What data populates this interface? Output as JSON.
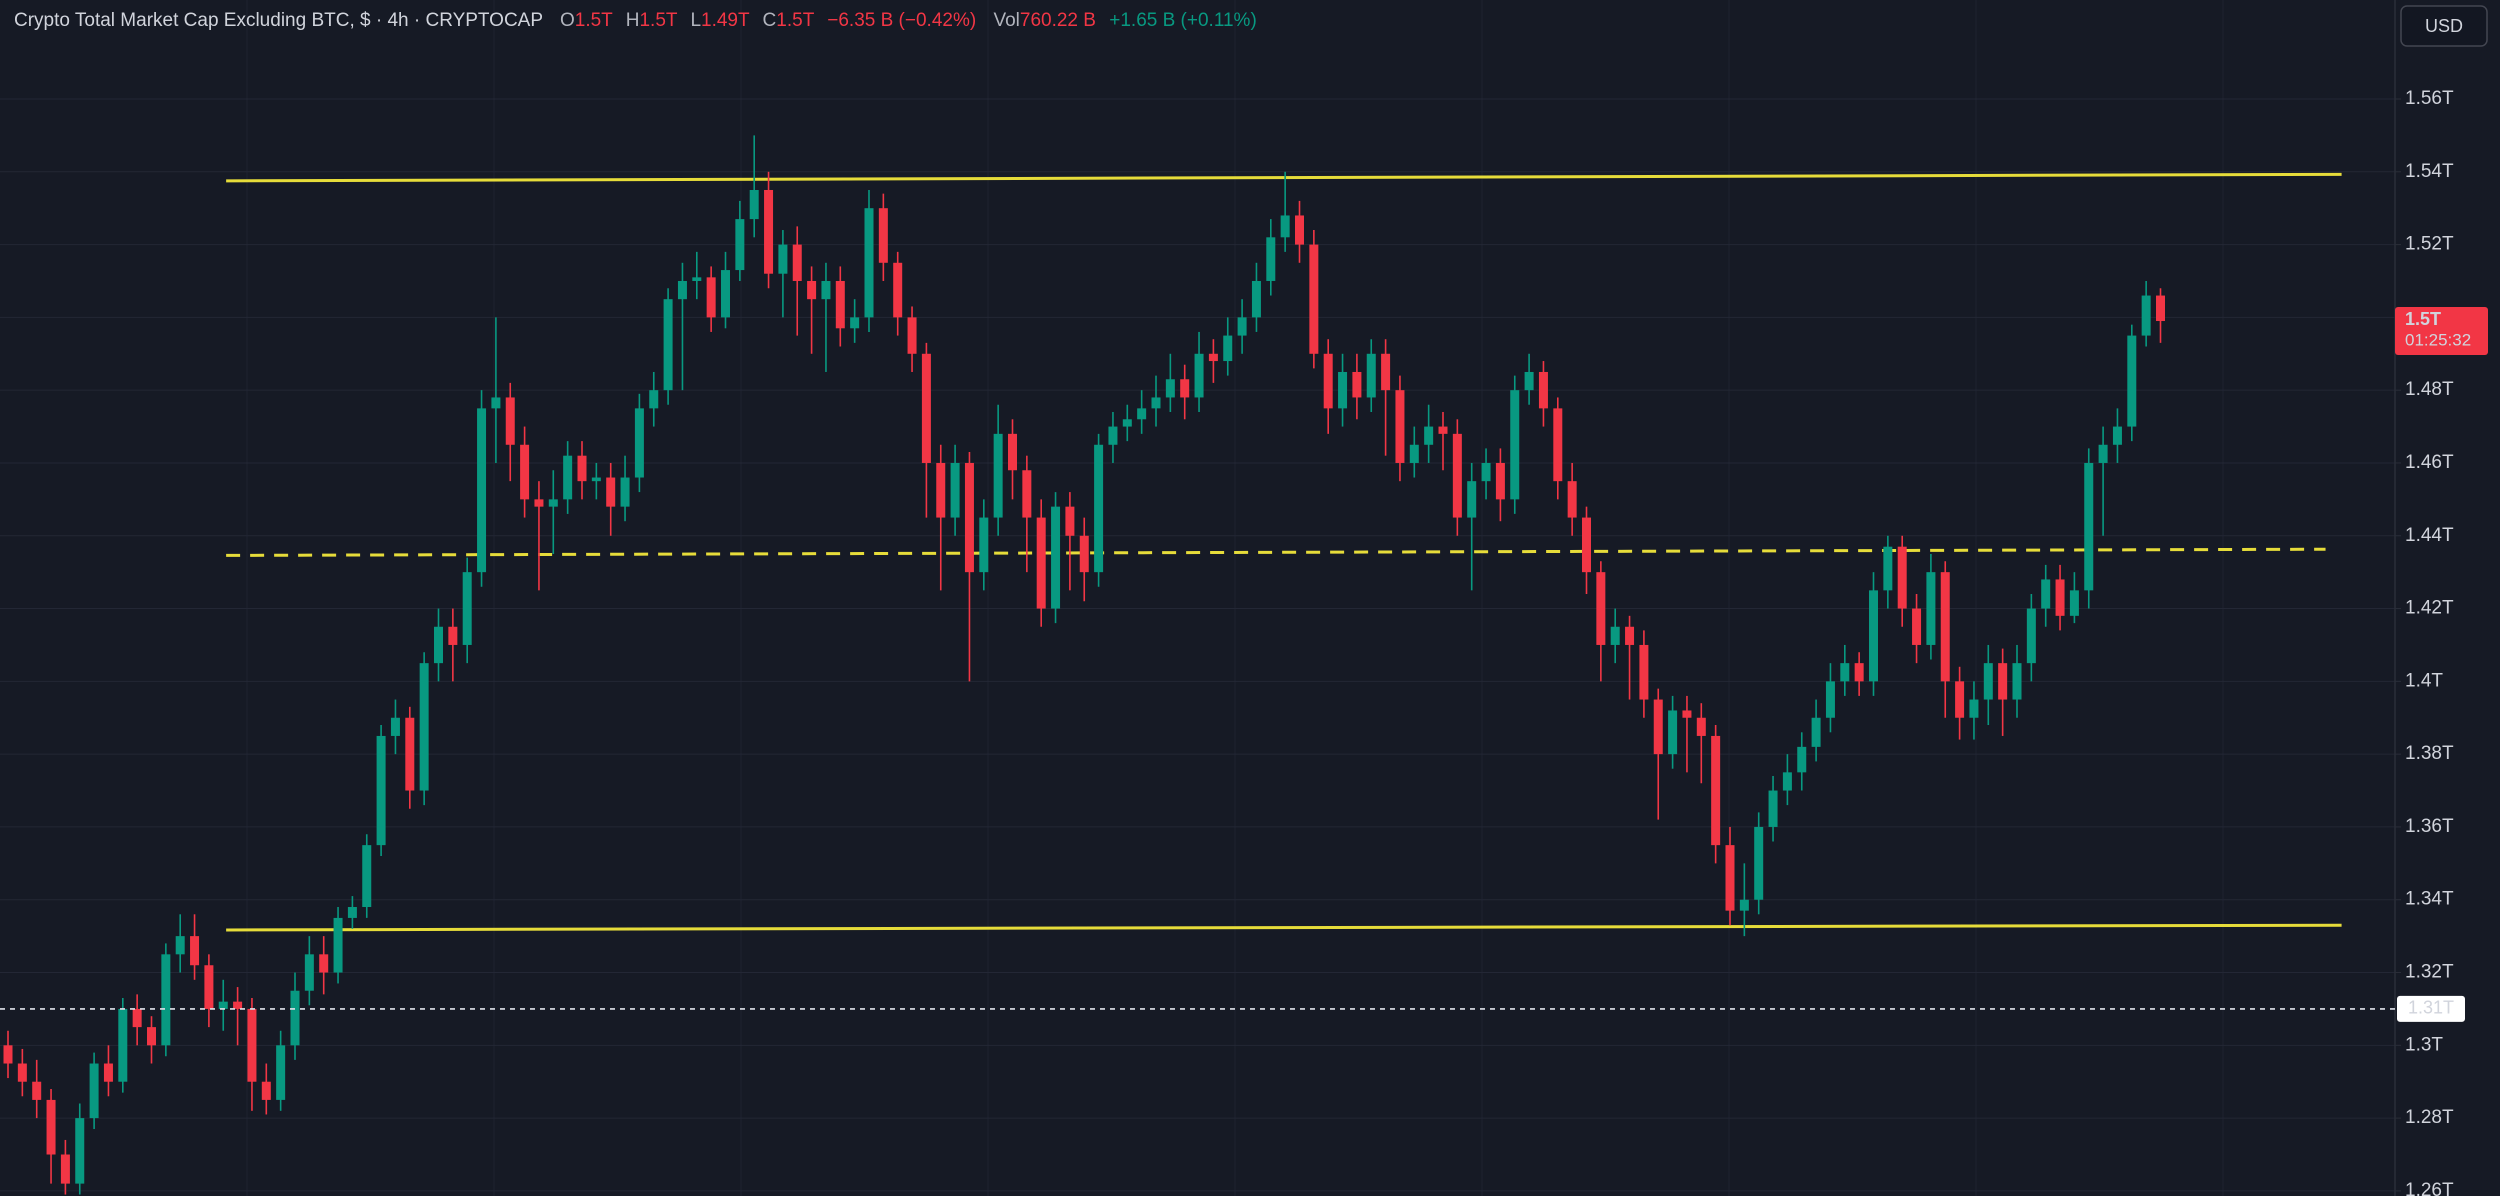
{
  "chart_data": {
    "type": "candlestick",
    "title": "Crypto Total Market Cap Excluding BTC, $ · 4h · CRYPTOCAP",
    "ohlc": [
      {
        "key": "O",
        "value": "1.5T"
      },
      {
        "key": "H",
        "value": "1.5T"
      },
      {
        "key": "L",
        "value": "1.49T"
      },
      {
        "key": "C",
        "value": "1.5T"
      }
    ],
    "change": "−6.35 B (−0.42%)",
    "volume_key": "Vol",
    "volume": "760.22 B",
    "volume_change": "+1.65 B (+0.11%)",
    "currency": "USD",
    "up_color": "#089981",
    "down_color": "#f23645",
    "grid": true,
    "ylim": [
      1.2586,
      1.5872
    ],
    "yticks": [
      {
        "value": 1.26,
        "label": "1.26T"
      },
      {
        "value": 1.28,
        "label": "1.28T"
      },
      {
        "value": 1.3,
        "label": "1.3T"
      },
      {
        "value": 1.32,
        "label": "1.32T"
      },
      {
        "value": 1.34,
        "label": "1.34T"
      },
      {
        "value": 1.36,
        "label": "1.36T"
      },
      {
        "value": 1.38,
        "label": "1.38T"
      },
      {
        "value": 1.4,
        "label": "1.4T"
      },
      {
        "value": 1.42,
        "label": "1.42T"
      },
      {
        "value": 1.44,
        "label": "1.44T"
      },
      {
        "value": 1.46,
        "label": "1.46T"
      },
      {
        "value": 1.48,
        "label": "1.48T"
      },
      {
        "value": 1.5,
        "label": "1.5T"
      },
      {
        "value": 1.52,
        "label": "1.52T"
      },
      {
        "value": 1.54,
        "label": "1.54T"
      },
      {
        "value": 1.56,
        "label": "1.56T"
      }
    ],
    "open": [
      1.3,
      1.295,
      1.29,
      1.285,
      1.27,
      1.262,
      1.28,
      1.295,
      1.29,
      1.31,
      1.305,
      1.3,
      1.325,
      1.33,
      1.322,
      1.31,
      1.312,
      1.31,
      1.29,
      1.285,
      1.3,
      1.315,
      1.325,
      1.32,
      1.335,
      1.338,
      1.355,
      1.385,
      1.39,
      1.37,
      1.405,
      1.415,
      1.41,
      1.43,
      1.475,
      1.478,
      1.465,
      1.45,
      1.448,
      1.45,
      1.462,
      1.455,
      1.456,
      1.448,
      1.456,
      1.475,
      1.48,
      1.505,
      1.51,
      1.511,
      1.5,
      1.513,
      1.527,
      1.535,
      1.512,
      1.52,
      1.51,
      1.505,
      1.51,
      1.497,
      1.5,
      1.53,
      1.515,
      1.5,
      1.49,
      1.46,
      1.445,
      1.46,
      1.43,
      1.445,
      1.468,
      1.458,
      1.445,
      1.42,
      1.448,
      1.44,
      1.43,
      1.465,
      1.47,
      1.472,
      1.475,
      1.478,
      1.483,
      1.478,
      1.49,
      1.488,
      1.495,
      1.5,
      1.51,
      1.522,
      1.528,
      1.52,
      1.49,
      1.475,
      1.485,
      1.478,
      1.49,
      1.48,
      1.46,
      1.465,
      1.47,
      1.468,
      1.445,
      1.455,
      1.46,
      1.45,
      1.48,
      1.485,
      1.475,
      1.455,
      1.445,
      1.43,
      1.41,
      1.415,
      1.41,
      1.395,
      1.38,
      1.392,
      1.39,
      1.385,
      1.355,
      1.337,
      1.34,
      1.36,
      1.37,
      1.375,
      1.382,
      1.39,
      1.4,
      1.405,
      1.4,
      1.425,
      1.437,
      1.42,
      1.41,
      1.43,
      1.4,
      1.39,
      1.395,
      1.405,
      1.395,
      1.405,
      1.42,
      1.428,
      1.418,
      1.425,
      1.46,
      1.465,
      1.47,
      1.495,
      1.506
    ],
    "high": [
      1.304,
      1.299,
      1.296,
      1.288,
      1.274,
      1.284,
      1.298,
      1.3,
      1.313,
      1.314,
      1.308,
      1.328,
      1.336,
      1.336,
      1.325,
      1.318,
      1.316,
      1.313,
      1.295,
      1.304,
      1.32,
      1.33,
      1.33,
      1.338,
      1.341,
      1.358,
      1.388,
      1.395,
      1.393,
      1.408,
      1.42,
      1.42,
      1.434,
      1.48,
      1.5,
      1.482,
      1.47,
      1.455,
      1.458,
      1.466,
      1.466,
      1.46,
      1.46,
      1.462,
      1.479,
      1.485,
      1.508,
      1.515,
      1.518,
      1.514,
      1.518,
      1.532,
      1.55,
      1.54,
      1.524,
      1.525,
      1.514,
      1.515,
      1.514,
      1.505,
      1.535,
      1.534,
      1.518,
      1.503,
      1.493,
      1.465,
      1.465,
      1.463,
      1.45,
      1.476,
      1.472,
      1.462,
      1.45,
      1.452,
      1.452,
      1.445,
      1.468,
      1.474,
      1.476,
      1.48,
      1.484,
      1.49,
      1.487,
      1.496,
      1.494,
      1.5,
      1.505,
      1.515,
      1.527,
      1.54,
      1.532,
      1.524,
      1.494,
      1.49,
      1.49,
      1.494,
      1.494,
      1.484,
      1.47,
      1.476,
      1.474,
      1.472,
      1.46,
      1.464,
      1.464,
      1.484,
      1.49,
      1.488,
      1.478,
      1.46,
      1.448,
      1.433,
      1.42,
      1.418,
      1.414,
      1.398,
      1.396,
      1.396,
      1.394,
      1.388,
      1.36,
      1.35,
      1.364,
      1.374,
      1.38,
      1.386,
      1.395,
      1.405,
      1.41,
      1.408,
      1.43,
      1.44,
      1.44,
      1.424,
      1.435,
      1.433,
      1.404,
      1.4,
      1.41,
      1.409,
      1.41,
      1.424,
      1.432,
      1.432,
      1.43,
      1.464,
      1.47,
      1.475,
      1.498,
      1.51,
      1.508
    ],
    "low": [
      1.291,
      1.286,
      1.28,
      1.262,
      1.259,
      1.259,
      1.277,
      1.286,
      1.287,
      1.3,
      1.295,
      1.297,
      1.32,
      1.318,
      1.305,
      1.304,
      1.3,
      1.282,
      1.281,
      1.282,
      1.296,
      1.311,
      1.314,
      1.317,
      1.332,
      1.335,
      1.352,
      1.38,
      1.365,
      1.366,
      1.4,
      1.4,
      1.405,
      1.426,
      1.46,
      1.455,
      1.445,
      1.425,
      1.435,
      1.446,
      1.45,
      1.45,
      1.44,
      1.444,
      1.452,
      1.47,
      1.476,
      1.48,
      1.505,
      1.496,
      1.497,
      1.51,
      1.522,
      1.508,
      1.5,
      1.495,
      1.49,
      1.485,
      1.492,
      1.493,
      1.496,
      1.51,
      1.495,
      1.485,
      1.445,
      1.425,
      1.44,
      1.4,
      1.425,
      1.44,
      1.45,
      1.43,
      1.415,
      1.416,
      1.425,
      1.422,
      1.426,
      1.46,
      1.466,
      1.468,
      1.47,
      1.474,
      1.472,
      1.474,
      1.482,
      1.484,
      1.49,
      1.496,
      1.506,
      1.518,
      1.515,
      1.486,
      1.468,
      1.47,
      1.472,
      1.474,
      1.462,
      1.455,
      1.456,
      1.46,
      1.458,
      1.44,
      1.425,
      1.45,
      1.444,
      1.446,
      1.476,
      1.47,
      1.45,
      1.44,
      1.424,
      1.4,
      1.405,
      1.395,
      1.39,
      1.362,
      1.376,
      1.375,
      1.372,
      1.35,
      1.333,
      1.33,
      1.336,
      1.356,
      1.366,
      1.37,
      1.378,
      1.386,
      1.396,
      1.396,
      1.396,
      1.42,
      1.415,
      1.405,
      1.406,
      1.39,
      1.384,
      1.384,
      1.388,
      1.385,
      1.39,
      1.4,
      1.415,
      1.414,
      1.416,
      1.42,
      1.44,
      1.46,
      1.466,
      1.492,
      1.493
    ],
    "close": [
      1.295,
      1.29,
      1.285,
      1.27,
      1.262,
      1.28,
      1.295,
      1.29,
      1.31,
      1.305,
      1.3,
      1.325,
      1.33,
      1.322,
      1.31,
      1.312,
      1.31,
      1.29,
      1.285,
      1.3,
      1.315,
      1.325,
      1.32,
      1.335,
      1.338,
      1.355,
      1.385,
      1.39,
      1.37,
      1.405,
      1.415,
      1.41,
      1.43,
      1.475,
      1.478,
      1.465,
      1.45,
      1.448,
      1.45,
      1.462,
      1.455,
      1.456,
      1.448,
      1.456,
      1.475,
      1.48,
      1.505,
      1.51,
      1.511,
      1.5,
      1.513,
      1.527,
      1.535,
      1.512,
      1.52,
      1.51,
      1.505,
      1.51,
      1.497,
      1.5,
      1.53,
      1.515,
      1.5,
      1.49,
      1.46,
      1.445,
      1.46,
      1.43,
      1.445,
      1.468,
      1.458,
      1.445,
      1.42,
      1.448,
      1.44,
      1.43,
      1.465,
      1.47,
      1.472,
      1.475,
      1.478,
      1.483,
      1.478,
      1.49,
      1.488,
      1.495,
      1.5,
      1.51,
      1.522,
      1.528,
      1.52,
      1.49,
      1.475,
      1.485,
      1.478,
      1.49,
      1.48,
      1.46,
      1.465,
      1.47,
      1.468,
      1.445,
      1.455,
      1.46,
      1.45,
      1.48,
      1.485,
      1.475,
      1.455,
      1.445,
      1.43,
      1.41,
      1.415,
      1.41,
      1.395,
      1.38,
      1.392,
      1.39,
      1.385,
      1.355,
      1.337,
      1.34,
      1.36,
      1.37,
      1.375,
      1.382,
      1.39,
      1.4,
      1.405,
      1.4,
      1.425,
      1.437,
      1.42,
      1.41,
      1.43,
      1.4,
      1.39,
      1.395,
      1.405,
      1.395,
      1.405,
      1.42,
      1.428,
      1.418,
      1.425,
      1.46,
      1.465,
      1.47,
      1.495,
      1.506,
      1.499
    ],
    "levels": [
      {
        "start": 1.5375,
        "end": 1.5393,
        "color": "#e6dc3a",
        "style": "solid"
      },
      {
        "start": 1.4346,
        "end": 1.4363,
        "color": "#e6dc3a",
        "style": "dashed"
      },
      {
        "start": 1.3317,
        "end": 1.333,
        "color": "#e6dc3a",
        "style": "solid"
      }
    ],
    "marker_line": {
      "value": 1.31,
      "label": "1.31T"
    },
    "price_label": {
      "value": 1.499,
      "label": "1.5T",
      "countdown": "01:25:32"
    }
  }
}
